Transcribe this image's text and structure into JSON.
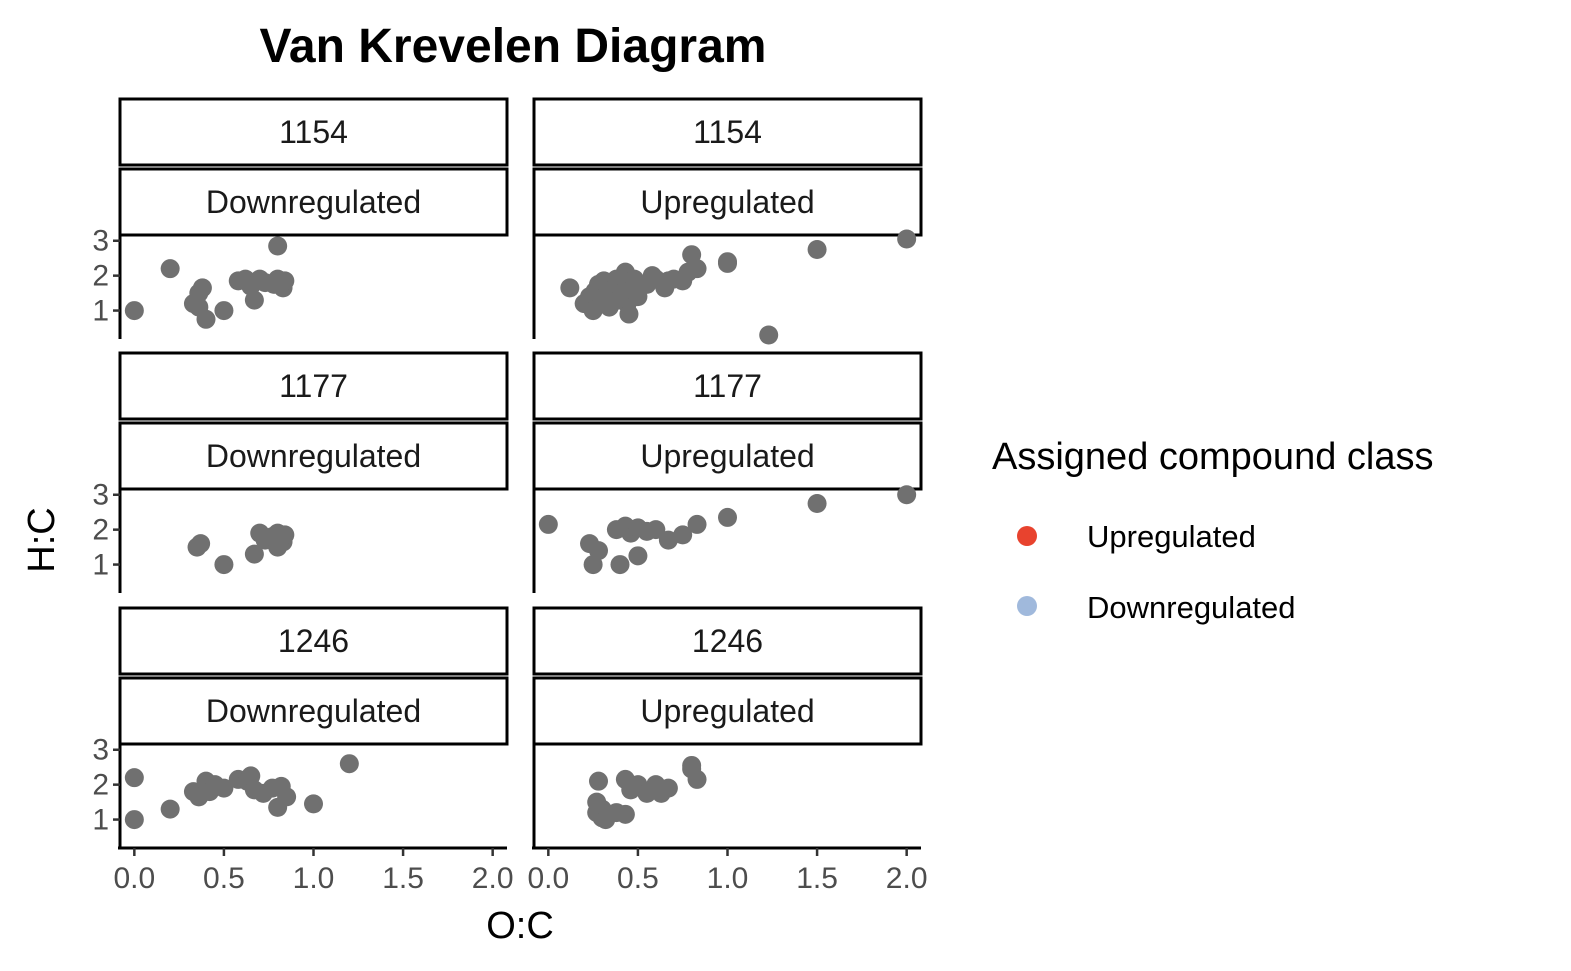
{
  "chart_data": {
    "type": "scatter",
    "title": "Van Krevelen Diagram",
    "xlabel": "O:C",
    "ylabel": "H:C",
    "xlim": [
      -0.08,
      2.08
    ],
    "ylim": [
      0.3,
      3.05
    ],
    "x_ticks": [
      0.0,
      0.5,
      1.0,
      1.5,
      2.0
    ],
    "x_tick_labels": [
      "0.0",
      "0.5",
      "1.0",
      "1.5",
      "2.0"
    ],
    "y_ticks": [
      1,
      2,
      3
    ],
    "y_tick_labels": [
      "1",
      "2",
      "3"
    ],
    "grid": false,
    "point_color": "#707070",
    "legend": {
      "title": "Assigned compound class",
      "position": "right",
      "entries": [
        {
          "label": "Upregulated",
          "color": "#E8432E"
        },
        {
          "label": "Downregulated",
          "color": "#A0B9DC"
        }
      ]
    },
    "facets": [
      {
        "id": "1154",
        "group": "Downregulated",
        "points": [
          [
            0.0,
            1.0
          ],
          [
            0.2,
            2.2
          ],
          [
            0.33,
            1.2
          ],
          [
            0.36,
            1.5
          ],
          [
            0.38,
            1.65
          ],
          [
            0.36,
            1.1
          ],
          [
            0.4,
            0.75
          ],
          [
            0.5,
            1.0
          ],
          [
            0.58,
            1.85
          ],
          [
            0.62,
            1.9
          ],
          [
            0.65,
            1.7
          ],
          [
            0.67,
            1.3
          ],
          [
            0.7,
            1.9
          ],
          [
            0.73,
            1.8
          ],
          [
            0.78,
            1.75
          ],
          [
            0.8,
            1.9
          ],
          [
            0.8,
            2.85
          ],
          [
            0.83,
            1.65
          ],
          [
            0.84,
            1.85
          ]
        ]
      },
      {
        "id": "1154",
        "group": "Upregulated",
        "points": [
          [
            0.12,
            1.65
          ],
          [
            0.2,
            1.2
          ],
          [
            0.23,
            1.4
          ],
          [
            0.25,
            1.0
          ],
          [
            0.26,
            1.55
          ],
          [
            0.28,
            1.75
          ],
          [
            0.3,
            1.3
          ],
          [
            0.31,
            1.85
          ],
          [
            0.33,
            1.5
          ],
          [
            0.34,
            1.1
          ],
          [
            0.36,
            1.6
          ],
          [
            0.38,
            1.9
          ],
          [
            0.39,
            1.3
          ],
          [
            0.4,
            1.75
          ],
          [
            0.41,
            1.5
          ],
          [
            0.43,
            2.1
          ],
          [
            0.44,
            1.2
          ],
          [
            0.45,
            0.9
          ],
          [
            0.46,
            1.6
          ],
          [
            0.48,
            1.9
          ],
          [
            0.5,
            1.4
          ],
          [
            0.55,
            1.75
          ],
          [
            0.58,
            2.0
          ],
          [
            0.6,
            1.9
          ],
          [
            0.65,
            1.65
          ],
          [
            0.67,
            1.85
          ],
          [
            0.7,
            1.9
          ],
          [
            0.75,
            1.85
          ],
          [
            0.78,
            2.1
          ],
          [
            0.8,
            2.6
          ],
          [
            0.83,
            2.2
          ],
          [
            1.0,
            2.35
          ],
          [
            1.0,
            2.4
          ],
          [
            1.23,
            0.3
          ],
          [
            1.5,
            2.75
          ],
          [
            2.0,
            3.05
          ]
        ]
      },
      {
        "id": "1177",
        "group": "Downregulated",
        "points": [
          [
            0.35,
            1.5
          ],
          [
            0.37,
            1.6
          ],
          [
            0.5,
            1.0
          ],
          [
            0.67,
            1.3
          ],
          [
            0.7,
            1.9
          ],
          [
            0.73,
            1.7
          ],
          [
            0.77,
            1.8
          ],
          [
            0.8,
            1.5
          ],
          [
            0.8,
            1.9
          ],
          [
            0.83,
            1.65
          ],
          [
            0.84,
            1.85
          ]
        ]
      },
      {
        "id": "1177",
        "group": "Upregulated",
        "points": [
          [
            0.0,
            2.15
          ],
          [
            0.23,
            1.6
          ],
          [
            0.25,
            1.0
          ],
          [
            0.28,
            1.4
          ],
          [
            0.38,
            2.0
          ],
          [
            0.4,
            1.0
          ],
          [
            0.43,
            2.1
          ],
          [
            0.46,
            1.9
          ],
          [
            0.5,
            1.25
          ],
          [
            0.5,
            2.05
          ],
          [
            0.55,
            1.95
          ],
          [
            0.6,
            2.0
          ],
          [
            0.67,
            1.7
          ],
          [
            0.75,
            1.85
          ],
          [
            0.83,
            2.15
          ],
          [
            1.0,
            2.35
          ],
          [
            1.5,
            2.75
          ],
          [
            2.0,
            3.0
          ]
        ]
      },
      {
        "id": "1246",
        "group": "Downregulated",
        "points": [
          [
            0.0,
            2.2
          ],
          [
            0.0,
            1.0
          ],
          [
            0.2,
            1.3
          ],
          [
            0.33,
            1.8
          ],
          [
            0.36,
            1.65
          ],
          [
            0.4,
            2.1
          ],
          [
            0.42,
            1.8
          ],
          [
            0.45,
            2.0
          ],
          [
            0.5,
            1.9
          ],
          [
            0.58,
            2.15
          ],
          [
            0.63,
            2.1
          ],
          [
            0.65,
            2.25
          ],
          [
            0.67,
            1.85
          ],
          [
            0.72,
            1.75
          ],
          [
            0.77,
            1.9
          ],
          [
            0.8,
            1.35
          ],
          [
            0.82,
            1.95
          ],
          [
            0.85,
            1.65
          ],
          [
            1.0,
            1.45
          ],
          [
            1.2,
            2.6
          ]
        ]
      },
      {
        "id": "1246",
        "group": "Upregulated",
        "points": [
          [
            0.28,
            2.1
          ],
          [
            0.27,
            1.5
          ],
          [
            0.27,
            1.2
          ],
          [
            0.3,
            1.3
          ],
          [
            0.3,
            1.05
          ],
          [
            0.32,
            1.0
          ],
          [
            0.33,
            1.1
          ],
          [
            0.38,
            1.2
          ],
          [
            0.43,
            1.15
          ],
          [
            0.43,
            2.15
          ],
          [
            0.46,
            1.85
          ],
          [
            0.5,
            2.0
          ],
          [
            0.55,
            1.75
          ],
          [
            0.6,
            2.0
          ],
          [
            0.63,
            1.75
          ],
          [
            0.67,
            1.9
          ],
          [
            0.8,
            2.55
          ],
          [
            0.8,
            2.45
          ],
          [
            0.83,
            2.15
          ]
        ]
      }
    ]
  }
}
